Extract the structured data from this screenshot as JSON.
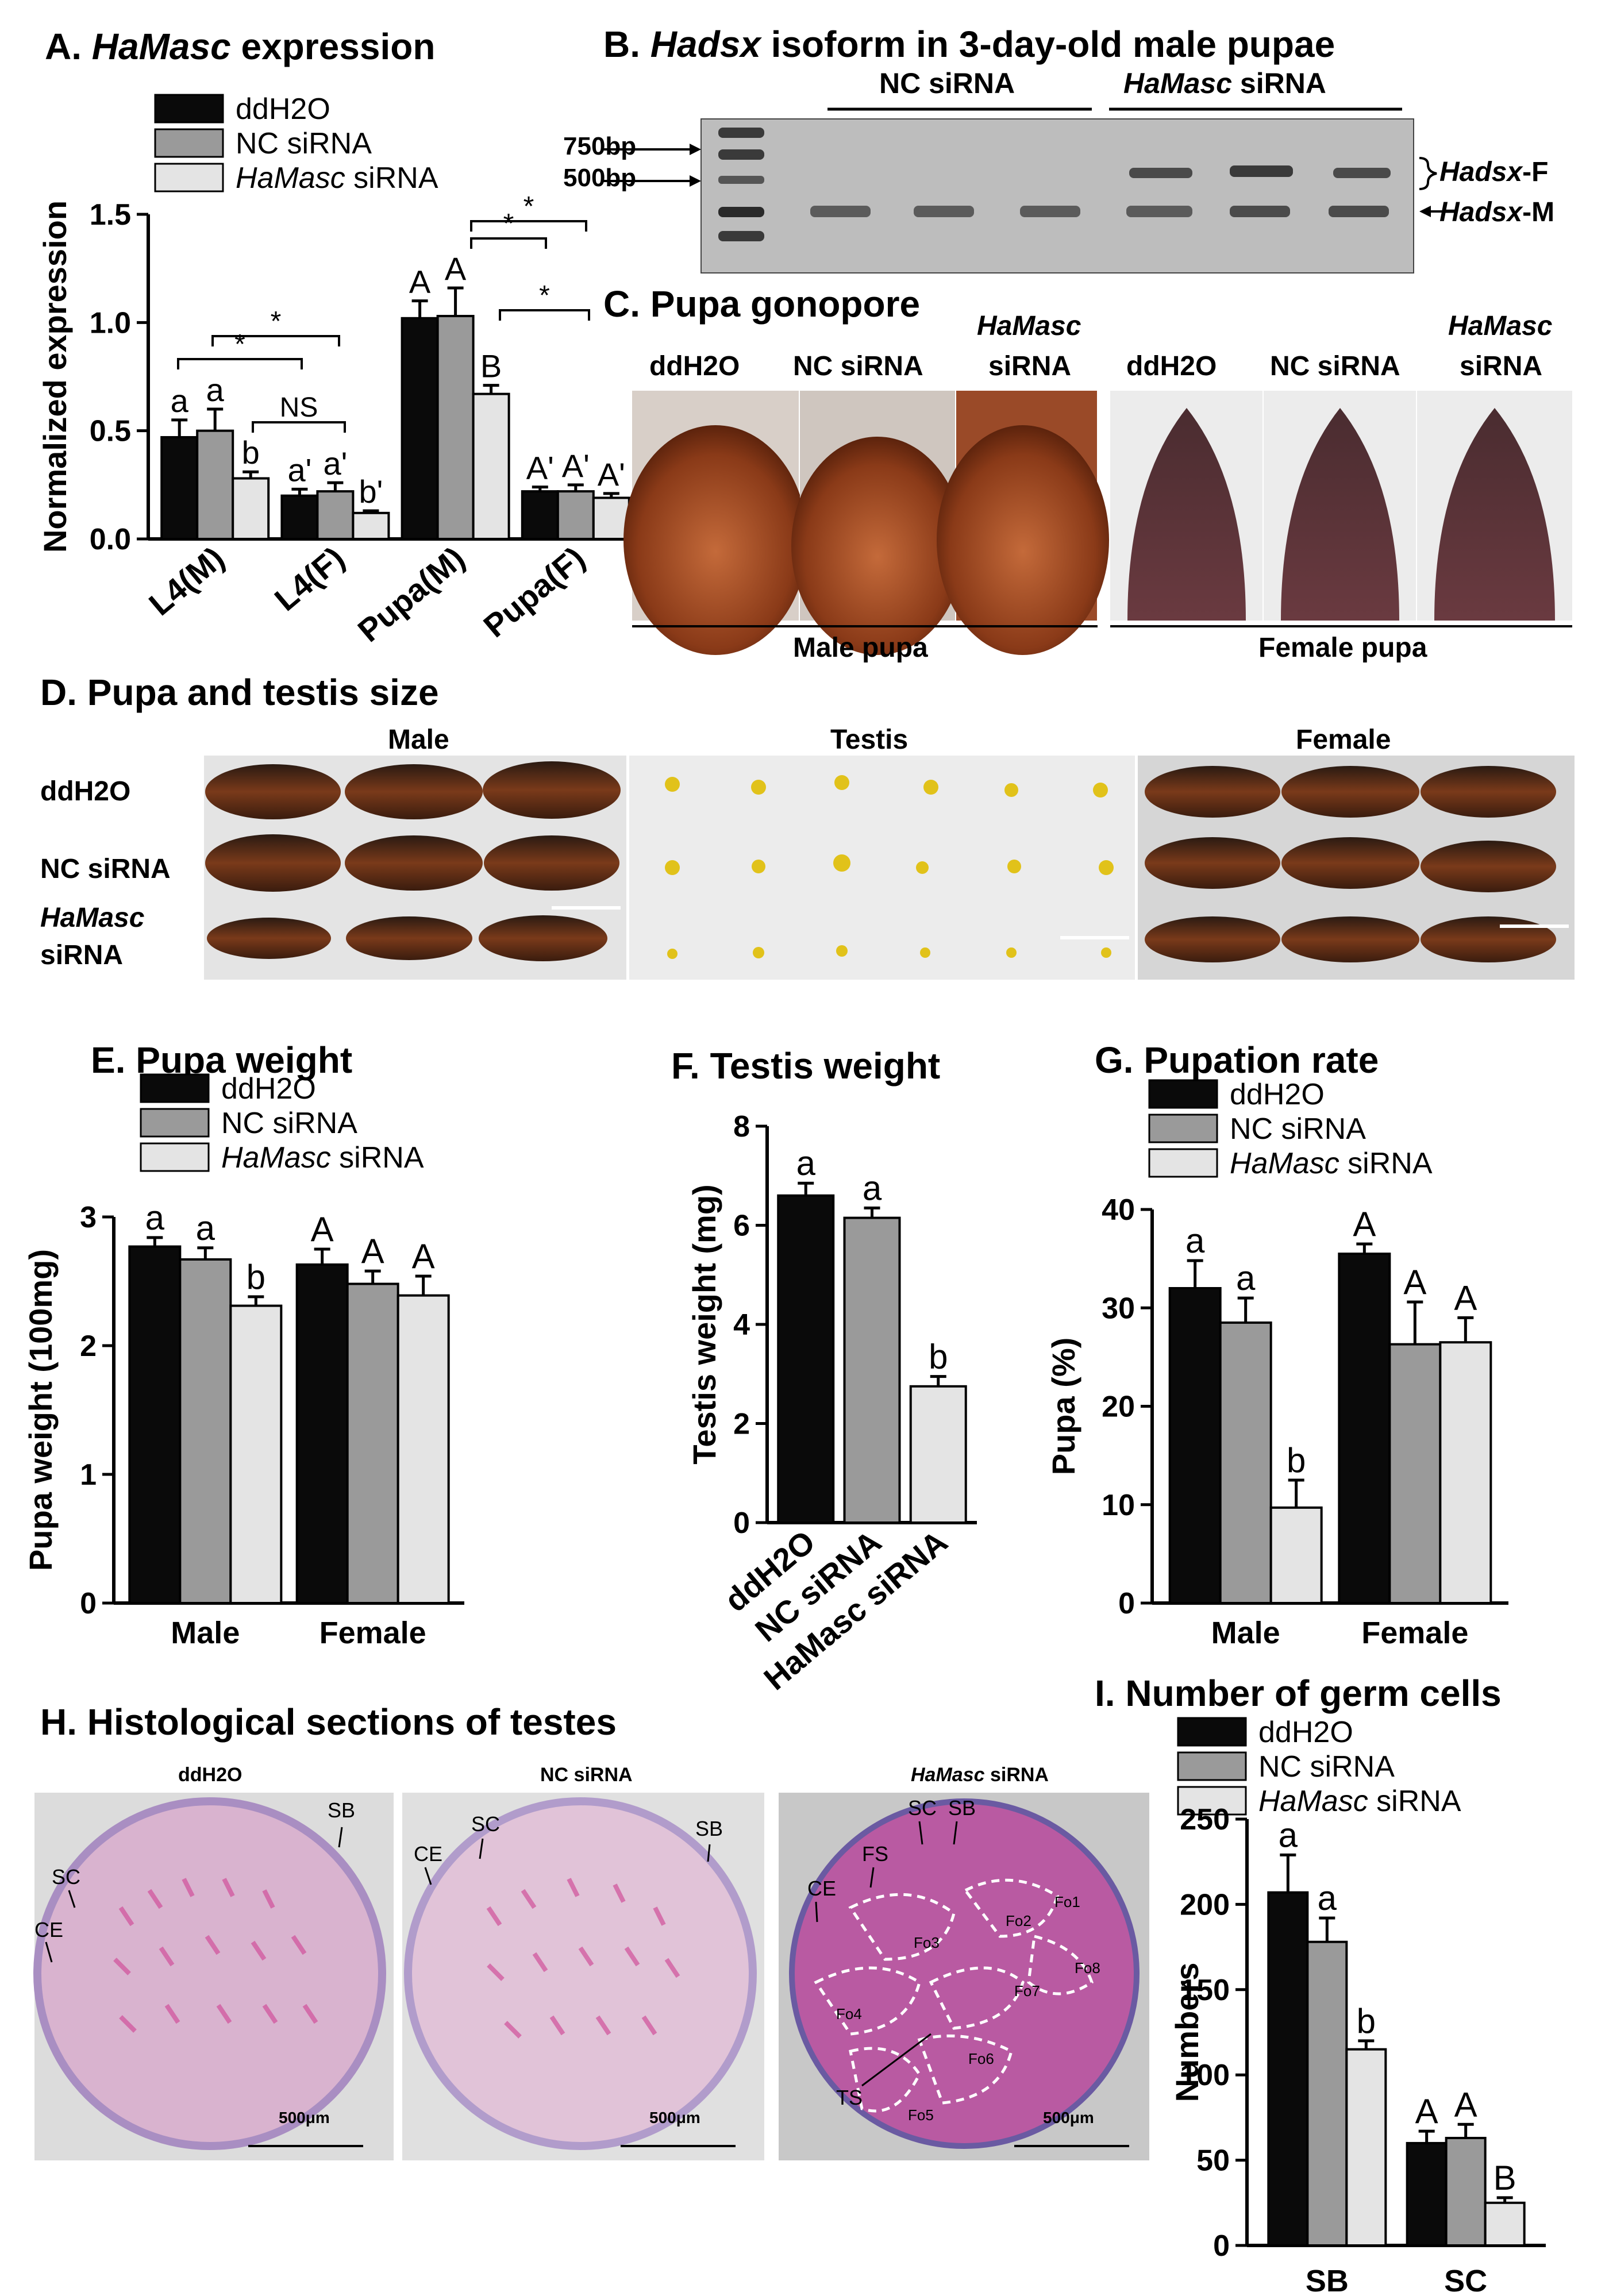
{
  "colors": {
    "ddH2O": "#0a0a0a",
    "NC siRNA": "#9a9a9a",
    "HaMasc siRNA": "#e4e4e4"
  },
  "legend": [
    {
      "name": "ddH2O",
      "italic": ""
    },
    {
      "name": "NC siRNA",
      "italic": ""
    },
    {
      "name": "HaMasc siRNA",
      "italic": "HaMasc",
      "rest": " siRNA"
    }
  ],
  "panelA": {
    "letter": "A.",
    "italic": "HaMasc",
    "rest": " expression"
  },
  "panelB": {
    "letter": "B.",
    "italic": "Hadsx",
    "rest": " isoform in 3-day-old male pupae",
    "group_nc": "NC siRNA",
    "group_hamasc_italic": "HaMasc",
    "group_hamasc_rest": " siRNA",
    "marker_750": "750bp",
    "marker_500": "500bp",
    "label_F_italic": "Hadsx",
    "label_F_rest": "-F",
    "label_M_italic": "Hadsx",
    "label_M_rest": "-M"
  },
  "panelC": {
    "title": "C. Pupa gonopore",
    "labels": [
      "ddH2O",
      "NC siRNA",
      "HaMasc",
      "siRNA"
    ],
    "male_caption": "Male pupa",
    "female_caption": "Female pupa"
  },
  "panelD": {
    "title": "D. Pupa and testis size",
    "col_male": "Male",
    "col_testis": "Testis",
    "col_female": "Female",
    "row1": "ddH2O",
    "row2": "NC siRNA",
    "row3_italic": "HaMasc",
    "row3_rest": "siRNA"
  },
  "panelE": {
    "title": "E. Pupa weight"
  },
  "panelF": {
    "title": "F. Testis weight"
  },
  "panelG": {
    "title": "G. Pupation rate"
  },
  "panelH": {
    "title": "H.  Histological sections of testes",
    "sub1": "ddH2O",
    "sub2": "NC siRNA",
    "sub3_italic": "HaMasc",
    "sub3_rest": " siRNA",
    "scale": "500μm",
    "annot1": [
      "SB",
      "SC",
      "CE"
    ],
    "annot2": [
      "SC",
      "CE",
      "SB"
    ],
    "annot3": [
      "SC",
      "SB",
      "FS",
      "CE",
      "TS",
      "Fo1",
      "Fo2",
      "Fo3",
      "Fo4",
      "Fo5",
      "Fo6",
      "Fo7",
      "Fo8"
    ]
  },
  "panelI": {
    "title": "I.  Number of germ cells"
  },
  "chart_data": [
    {
      "id": "A",
      "type": "bar",
      "ylabel": "Normalized expression",
      "ylim": [
        0,
        1.5
      ],
      "yticks": [
        "0.0",
        "0.5",
        "1.0",
        "1.5"
      ],
      "categories": [
        "L4(M)",
        "L4(F)",
        "Pupa(M)",
        "Pupa(F)"
      ],
      "series": [
        {
          "name": "ddH2O",
          "values": [
            0.47,
            0.2,
            1.02,
            0.22
          ],
          "errors": [
            0.08,
            0.03,
            0.08,
            0.02
          ],
          "letters": [
            "a",
            "a'",
            "A",
            "A'"
          ]
        },
        {
          "name": "NC siRNA",
          "values": [
            0.5,
            0.22,
            1.03,
            0.22
          ],
          "errors": [
            0.1,
            0.04,
            0.13,
            0.03
          ],
          "letters": [
            "a",
            "a'",
            "A",
            "A'"
          ]
        },
        {
          "name": "HaMasc siRNA",
          "values": [
            0.28,
            0.12,
            0.67,
            0.19
          ],
          "errors": [
            0.03,
            0.01,
            0.04,
            0.02
          ],
          "letters": [
            "b",
            "b'",
            "B",
            "A'"
          ]
        }
      ],
      "annotations": [
        "*",
        "*",
        "NS",
        "*",
        "*",
        "*"
      ]
    },
    {
      "id": "E",
      "type": "bar",
      "ylabel": "Pupa weight (100mg)",
      "ylim": [
        0,
        3
      ],
      "yticks": [
        "0",
        "1",
        "2",
        "3"
      ],
      "categories": [
        "Male",
        "Female"
      ],
      "series": [
        {
          "name": "ddH2O",
          "values": [
            2.77,
            2.63
          ],
          "errors": [
            0.07,
            0.12
          ],
          "letters": [
            "a",
            "A"
          ]
        },
        {
          "name": "NC siRNA",
          "values": [
            2.67,
            2.48
          ],
          "errors": [
            0.09,
            0.1
          ],
          "letters": [
            "a",
            "A"
          ]
        },
        {
          "name": "HaMasc siRNA",
          "values": [
            2.31,
            2.39
          ],
          "errors": [
            0.07,
            0.15
          ],
          "letters": [
            "b",
            "A"
          ]
        }
      ]
    },
    {
      "id": "F",
      "type": "bar",
      "ylabel": "Testis weight (mg)",
      "ylim": [
        0,
        8
      ],
      "yticks": [
        "0",
        "2",
        "4",
        "6",
        "8"
      ],
      "categories": [
        "ddH2O",
        "NC siRNA",
        "HaMasc siRNA"
      ],
      "values": [
        6.6,
        6.15,
        2.75
      ],
      "errors": [
        0.25,
        0.2,
        0.2
      ],
      "letters": [
        "a",
        "a",
        "b"
      ]
    },
    {
      "id": "G",
      "type": "bar",
      "ylabel": "Pupa (%)",
      "ylim": [
        0,
        40
      ],
      "yticks": [
        "0",
        "10",
        "20",
        "30",
        "40"
      ],
      "categories": [
        "Male",
        "Female"
      ],
      "series": [
        {
          "name": "ddH2O",
          "values": [
            32,
            35.5
          ],
          "errors": [
            2.8,
            1.0
          ],
          "letters": [
            "a",
            "A"
          ]
        },
        {
          "name": "NC siRNA",
          "values": [
            28.5,
            26.3
          ],
          "errors": [
            2.5,
            4.3
          ],
          "letters": [
            "a",
            "A"
          ]
        },
        {
          "name": "HaMasc siRNA",
          "values": [
            9.7,
            26.5
          ],
          "errors": [
            2.8,
            2.5
          ],
          "letters": [
            "b",
            "A"
          ]
        }
      ]
    },
    {
      "id": "I",
      "type": "bar",
      "ylabel": "Numbers",
      "ylim": [
        0,
        250
      ],
      "yticks": [
        "0",
        "50",
        "100",
        "150",
        "200",
        "250"
      ],
      "categories": [
        "SB",
        "SC"
      ],
      "series": [
        {
          "name": "ddH2O",
          "values": [
            207,
            60
          ],
          "errors": [
            22,
            7
          ],
          "letters": [
            "a",
            "A"
          ]
        },
        {
          "name": "NC siRNA",
          "values": [
            178,
            63
          ],
          "errors": [
            14,
            8
          ],
          "letters": [
            "a",
            "A"
          ]
        },
        {
          "name": "HaMasc siRNA",
          "values": [
            115,
            25
          ],
          "errors": [
            5,
            3
          ],
          "letters": [
            "b",
            "B"
          ]
        }
      ]
    }
  ]
}
